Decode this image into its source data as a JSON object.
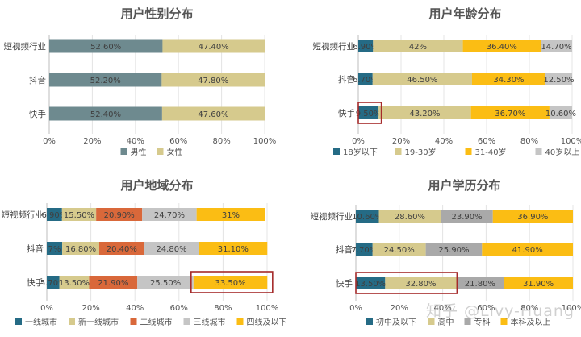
{
  "watermark": "知乎 @Livy-Huang",
  "chart_data": [
    {
      "type": "bar",
      "stacked": true,
      "orientation": "horizontal",
      "title": "用户性别分布",
      "categories": [
        "短视频行业",
        "抖音",
        "快手"
      ],
      "xlim": [
        0,
        100
      ],
      "ticks": [
        "0%",
        "20%",
        "40%",
        "60%",
        "80%",
        "100%"
      ],
      "legend_position": "bottom",
      "series": [
        {
          "name": "男性",
          "color": "#6e8a8f",
          "values": [
            52.6,
            52.2,
            52.4
          ],
          "labels": [
            "52.60%",
            "52.20%",
            "52.40%"
          ]
        },
        {
          "name": "女性",
          "color": "#d6ca8d",
          "values": [
            47.4,
            47.8,
            47.6
          ],
          "labels": [
            "47.40%",
            "47.80%",
            "47.60%"
          ]
        }
      ],
      "highlights": []
    },
    {
      "type": "bar",
      "stacked": true,
      "orientation": "horizontal",
      "title": "用户年龄分布",
      "categories": [
        "短视频行业",
        "抖音",
        "快手"
      ],
      "xlim": [
        0,
        100
      ],
      "ticks": [
        "0%",
        "20%",
        "40%",
        "60%",
        "80%",
        "100%"
      ],
      "legend_position": "bottom",
      "series": [
        {
          "name": "18岁以下",
          "color": "#256b85",
          "values": [
            6.9,
            6.7,
            9.5
          ],
          "labels": [
            "6.90%",
            "6.70%",
            "9.50%"
          ]
        },
        {
          "name": "19-30岁",
          "color": "#d6ca8d",
          "values": [
            42,
            46.5,
            43.2
          ],
          "labels": [
            "42%",
            "46.50%",
            "43.20%"
          ]
        },
        {
          "name": "31-40岁",
          "color": "#fbbd14",
          "values": [
            36.4,
            34.3,
            36.7
          ],
          "labels": [
            "36.40%",
            "34.30%",
            "36.70%"
          ]
        },
        {
          "name": "40岁以上",
          "color": "#c5c5c5",
          "values": [
            14.7,
            12.5,
            10.6
          ],
          "labels": [
            "14.70%",
            "12.50%",
            "10.60%"
          ]
        }
      ],
      "highlights": [
        {
          "category": 2,
          "from": 0,
          "to": 10.8
        }
      ]
    },
    {
      "type": "bar",
      "stacked": true,
      "orientation": "horizontal",
      "title": "用户地域分布",
      "categories": [
        "短视频行业",
        "抖音",
        "快手"
      ],
      "xlim": [
        0,
        100
      ],
      "ticks": [
        "0%",
        "20%",
        "40%",
        "60%",
        "80%",
        "100%"
      ],
      "legend_position": "bottom",
      "series": [
        {
          "name": "一线城市",
          "color": "#256b85",
          "values": [
            6.9,
            7,
            5.7
          ],
          "labels": [
            "6.90%",
            "7%",
            "5.70%"
          ]
        },
        {
          "name": "新一线城市",
          "color": "#d6ca8d",
          "values": [
            15.5,
            16.8,
            13.5
          ],
          "labels": [
            "15.50%",
            "16.80%",
            "13.50%"
          ]
        },
        {
          "name": "二线城市",
          "color": "#d9683a",
          "values": [
            20.9,
            20.4,
            21.9
          ],
          "labels": [
            "20.90%",
            "20.40%",
            "21.90%"
          ]
        },
        {
          "name": "三线城市",
          "color": "#c5c5c5",
          "values": [
            24.7,
            24.8,
            25.5
          ],
          "labels": [
            "24.70%",
            "24.80%",
            "25.50%"
          ]
        },
        {
          "name": "四线及以下",
          "color": "#fbbd14",
          "values": [
            31,
            31.1,
            33.5
          ],
          "labels": [
            "31%",
            "31.10%",
            "33.50%"
          ]
        }
      ],
      "highlights": [
        {
          "category": 2,
          "from": 65.5,
          "to": 102.5
        }
      ]
    },
    {
      "type": "bar",
      "stacked": true,
      "orientation": "horizontal",
      "title": "用户学历分布",
      "categories": [
        "短视频行业",
        "抖音",
        "快手"
      ],
      "xlim": [
        0,
        100
      ],
      "ticks": [
        "0%",
        "20%",
        "40%",
        "60%",
        "80%",
        "100%"
      ],
      "legend_position": "bottom",
      "series": [
        {
          "name": "初中及以下",
          "color": "#256b85",
          "values": [
            10.6,
            7.7,
            13.5
          ],
          "labels": [
            "10.60%",
            "7.70%",
            "13.50%"
          ]
        },
        {
          "name": "高中",
          "color": "#d6ca8d",
          "values": [
            28.6,
            24.5,
            32.8
          ],
          "labels": [
            "28.60%",
            "24.50%",
            "32.80%"
          ]
        },
        {
          "name": "专科",
          "color": "#a9a9a9",
          "values": [
            23.9,
            25.9,
            21.8
          ],
          "labels": [
            "23.90%",
            "25.90%",
            "21.80%"
          ]
        },
        {
          "name": "本科及以上",
          "color": "#fbbd14",
          "values": [
            36.9,
            41.9,
            31.9
          ],
          "labels": [
            "36.90%",
            "41.90%",
            "31.90%"
          ]
        }
      ],
      "highlights": [
        {
          "category": 2,
          "from": 0,
          "to": 46.6
        }
      ]
    }
  ]
}
